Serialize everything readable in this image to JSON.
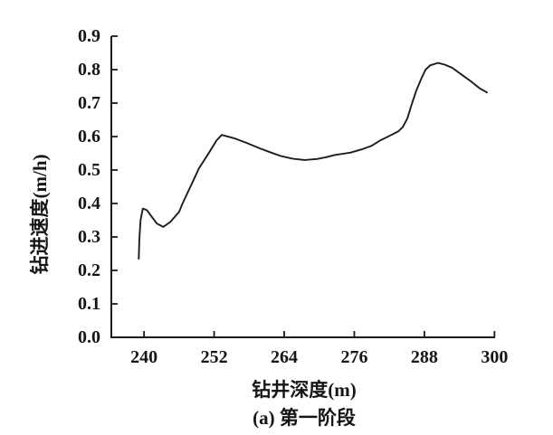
{
  "figure": {
    "background": "#ffffff",
    "axis_color": "#1a1a1a",
    "line_color": "#1d1d1d",
    "text_color": "#161616"
  },
  "chart_data": {
    "type": "line",
    "title": "",
    "xlabel": "钻井深度(m)",
    "ylabel": "钻进速度(m/h)",
    "caption": "(a) 第一阶段",
    "grid": false,
    "legend": "none",
    "xlim": [
      234.4,
      300.1
    ],
    "ylim": [
      0.0,
      0.9
    ],
    "x_ticks": [
      240,
      252,
      264,
      276,
      288,
      300
    ],
    "x_tick_labels": [
      "240",
      "252",
      "264",
      "276",
      "288",
      "300"
    ],
    "y_ticks": [
      0.0,
      0.1,
      0.2,
      0.3,
      0.4,
      0.5,
      0.6,
      0.7,
      0.8,
      0.9
    ],
    "y_tick_labels": [
      "0.0",
      "0.1",
      "0.2",
      "0.3",
      "0.4",
      "0.5",
      "0.6",
      "0.7",
      "0.8",
      "0.9"
    ],
    "series": [
      {
        "x": [
          239.1,
          239.2,
          239.4,
          239.8,
          240.5,
          241.2,
          242.2,
          243.3,
          244.5,
          246.0,
          246.6,
          247.4,
          248.2,
          249.4,
          251.0,
          252.4,
          253.3,
          255.6,
          257.7,
          259.8,
          261.8,
          263.4,
          265.4,
          267.5,
          269.6,
          271.1,
          272.7,
          275.3,
          277.3,
          278.9,
          280.4,
          282.0,
          283.5,
          284.3,
          285.1,
          285.8,
          286.6,
          287.4,
          288.2,
          289.0,
          290.3,
          291.5,
          292.8,
          294.3,
          295.9,
          297.4,
          298.7
        ],
        "y": [
          0.235,
          0.295,
          0.35,
          0.385,
          0.38,
          0.363,
          0.34,
          0.33,
          0.345,
          0.375,
          0.4,
          0.43,
          0.46,
          0.505,
          0.548,
          0.588,
          0.605,
          0.594,
          0.58,
          0.565,
          0.552,
          0.542,
          0.534,
          0.53,
          0.533,
          0.538,
          0.545,
          0.552,
          0.562,
          0.572,
          0.588,
          0.602,
          0.615,
          0.628,
          0.655,
          0.695,
          0.737,
          0.77,
          0.8,
          0.813,
          0.82,
          0.815,
          0.805,
          0.786,
          0.766,
          0.745,
          0.732
        ]
      }
    ]
  }
}
